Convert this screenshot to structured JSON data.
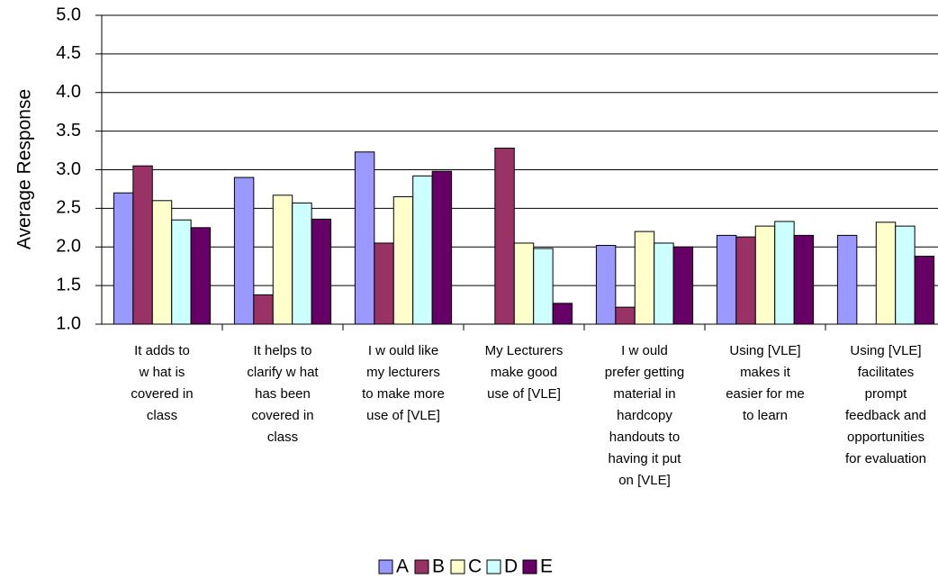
{
  "chart_data": {
    "type": "bar",
    "y_label": "Average Response",
    "categories": [
      [
        "It adds to",
        "w hat is",
        "covered in",
        "class"
      ],
      [
        "It helps to",
        "clarify w hat",
        "has been",
        "covered in",
        "class"
      ],
      [
        "I w ould like",
        "my lecturers",
        "to make more",
        "use of [VLE]"
      ],
      [
        "My Lecturers",
        "make good",
        "use of [VLE]"
      ],
      [
        "I w ould",
        "prefer getting",
        "material in",
        "hardcopy",
        "handouts to",
        "having it put",
        "on [VLE]"
      ],
      [
        "Using [VLE]",
        "makes it",
        "easier for me",
        "to learn"
      ],
      [
        "Using [VLE]",
        "facilitates",
        "prompt",
        "feedback and",
        "opportunities",
        "for evaluation"
      ]
    ],
    "series": [
      {
        "name": "A",
        "color": "#9999ff",
        "values": [
          2.7,
          2.9,
          3.23,
          null,
          2.02,
          2.15,
          2.15
        ]
      },
      {
        "name": "B",
        "color": "#993366",
        "values": [
          3.05,
          1.38,
          2.05,
          3.28,
          1.22,
          2.13,
          null
        ]
      },
      {
        "name": "C",
        "color": "#ffffcc",
        "values": [
          2.6,
          2.67,
          2.65,
          2.05,
          2.2,
          2.27,
          2.32
        ]
      },
      {
        "name": "D",
        "color": "#ccffff",
        "values": [
          2.35,
          2.57,
          2.92,
          1.98,
          2.05,
          2.33,
          2.27
        ]
      },
      {
        "name": "E",
        "color": "#660066",
        "values": [
          2.25,
          2.36,
          2.98,
          1.27,
          2.0,
          2.15,
          1.88
        ]
      }
    ],
    "ylim": [
      1,
      5
    ],
    "yticks": [
      {
        "value": 1,
        "label": "1.0"
      },
      1.5,
      {
        "value": 2,
        "label": "2.0"
      },
      2.5,
      {
        "value": 3,
        "label": "3.0"
      },
      3.5,
      {
        "value": 4,
        "label": "4.0"
      },
      4.5,
      {
        "value": 5,
        "label": "5.0"
      }
    ],
    "grid": true,
    "legend": "bottom"
  }
}
